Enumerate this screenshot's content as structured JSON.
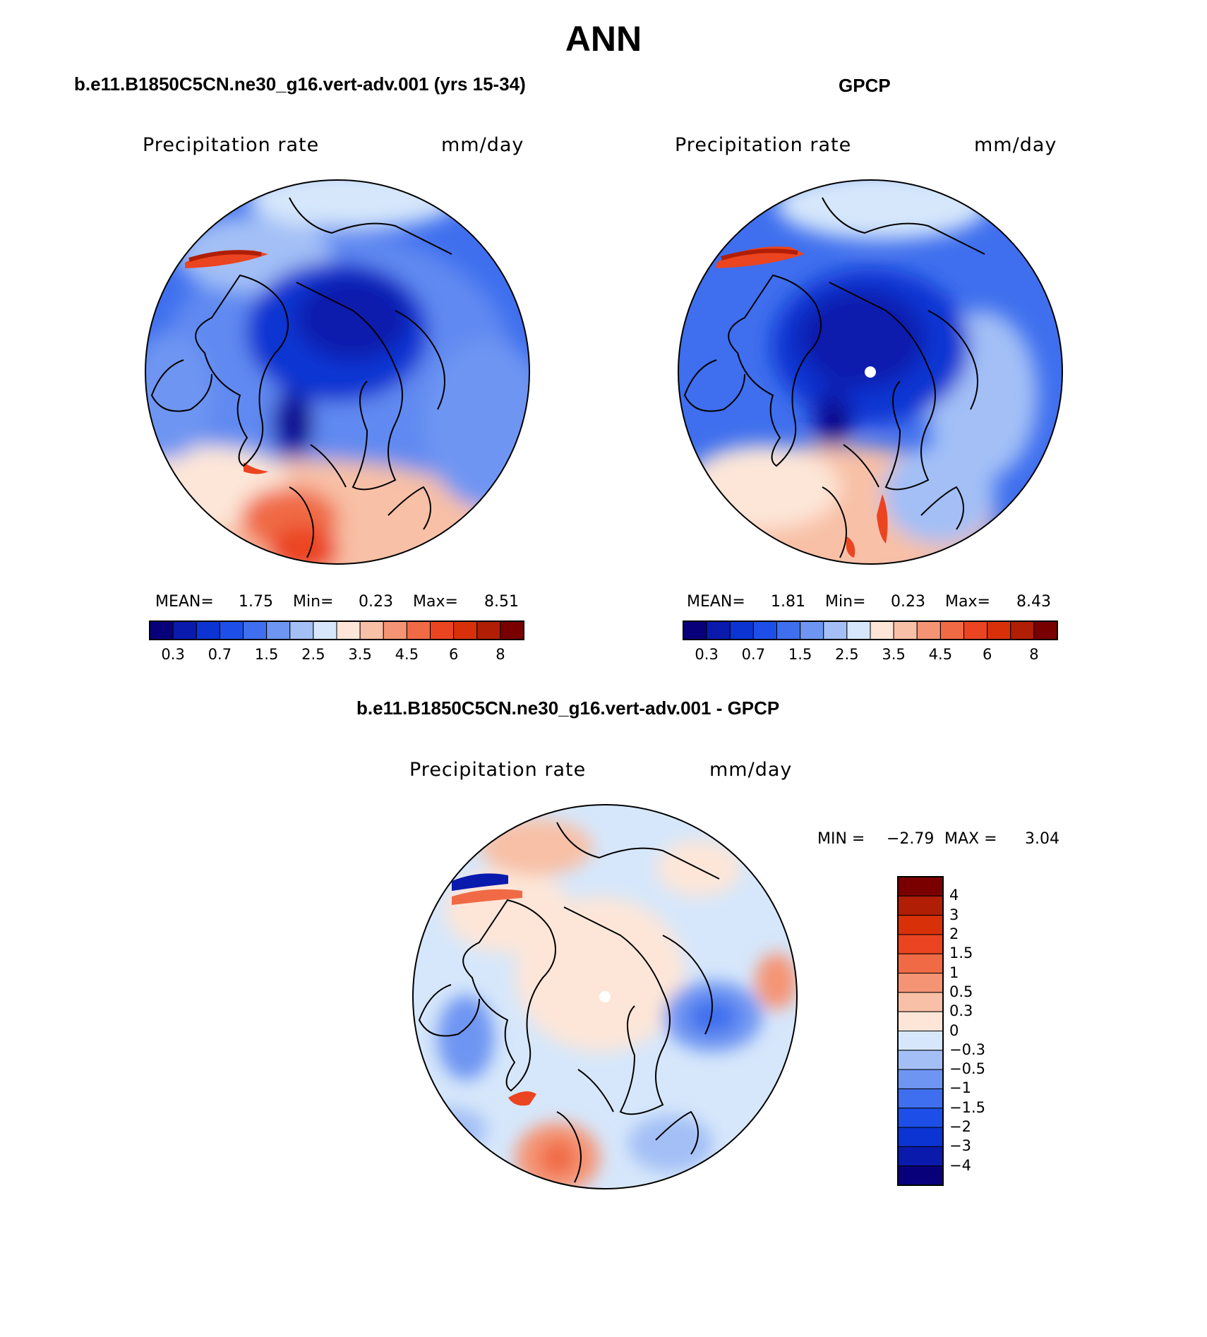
{
  "title": "ANN",
  "panels": [
    {
      "id": "model",
      "header": "b.e11.B1850C5CN.ne30_g16.vert-adv.001 (yrs 15-34)",
      "variable": "Precipitation rate",
      "units": "mm/day",
      "stats": {
        "mean_label": "MEAN=",
        "mean": "1.75",
        "min_label": "Min=",
        "min": "0.23",
        "max_label": "Max=",
        "max": "8.51"
      }
    },
    {
      "id": "obs",
      "header": "GPCP",
      "variable": "Precipitation rate",
      "units": "mm/day",
      "stats": {
        "mean_label": "MEAN=",
        "mean": "1.81",
        "min_label": "Min=",
        "min": "0.23",
        "max_label": "Max=",
        "max": "8.43"
      }
    },
    {
      "id": "diff",
      "header": "b.e11.B1850C5CN.ne30_g16.vert-adv.001 - GPCP",
      "variable": "Precipitation rate",
      "units": "mm/day",
      "stats": {
        "min_label": "MIN =",
        "min": "−2.79",
        "max_label": "MAX =",
        "max": "3.04"
      }
    }
  ],
  "abs_colorbar": {
    "colors": [
      "#08007a",
      "#0a1aad",
      "#0b34d2",
      "#1d4fe8",
      "#3f6fee",
      "#6e95f2",
      "#a3bff6",
      "#d6e7fb",
      "#fde6d8",
      "#f8c0a6",
      "#f59474",
      "#f06a45",
      "#eb4420",
      "#d8310a",
      "#b01e05",
      "#7a0000"
    ],
    "ticks": [
      "0.3",
      "0.7",
      "1.5",
      "2.5",
      "3.5",
      "4.5",
      "6",
      "8"
    ]
  },
  "diff_colorbar": {
    "colors": [
      "#7a0000",
      "#b01e05",
      "#d8310a",
      "#eb4420",
      "#f06a45",
      "#f59474",
      "#f8c0a6",
      "#fde6d8",
      "#d6e7fb",
      "#a3bff6",
      "#6e95f2",
      "#3f6fee",
      "#1d4fe8",
      "#0b34d2",
      "#0a1aad",
      "#08007a"
    ],
    "levels": [
      "4",
      "3",
      "2",
      "1.5",
      "1",
      "0.5",
      "0.3",
      "0",
      "−0.3",
      "−0.5",
      "−1",
      "−1.5",
      "−2",
      "−3",
      "−4"
    ]
  }
}
